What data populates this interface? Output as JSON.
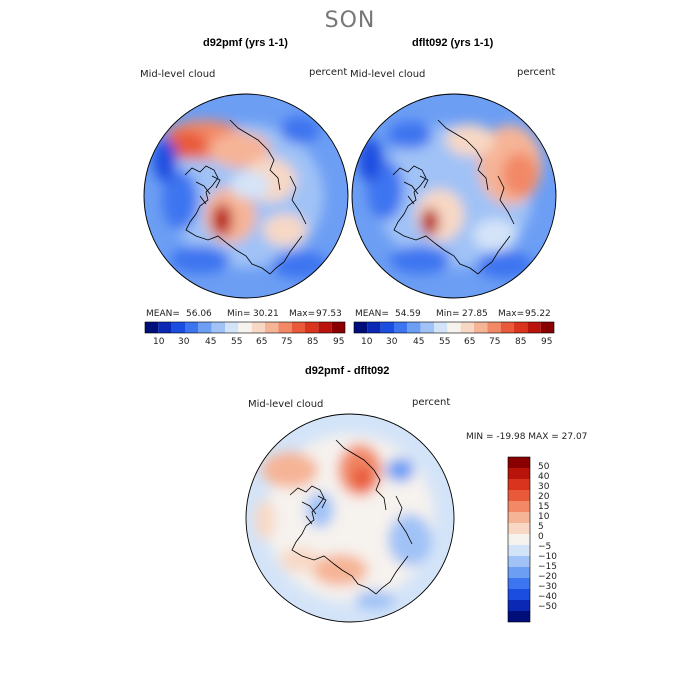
{
  "figure": {
    "season": "SON",
    "field_label": "Mid-level cloud",
    "units": "percent"
  },
  "panels": [
    {
      "title": "d92pmf (yrs 1-1)",
      "field": "Mid-level cloud",
      "units": "percent",
      "mean_label": "MEAN=",
      "mean": "56.06",
      "min_label": "Min=",
      "min": "30.21",
      "max_label": "Max=",
      "max": "97.53"
    },
    {
      "title": "dflt092 (yrs 1-1)",
      "field": "Mid-level cloud",
      "units": "percent",
      "mean_label": "MEAN=",
      "mean": "54.59",
      "min_label": "Min=",
      "min": "27.85",
      "max_label": "Max=",
      "max": "95.22"
    }
  ],
  "abs_colorbar": {
    "tick_labels": [
      "10",
      "30",
      "45",
      "55",
      "65",
      "75",
      "85",
      "95"
    ],
    "colors": [
      "#000e7a",
      "#0a28b4",
      "#1b4ee0",
      "#3d74f0",
      "#6c9ef4",
      "#a0c2f6",
      "#d4e4f8",
      "#f6f2ee",
      "#f8d8c4",
      "#f6b496",
      "#f28866",
      "#e85a3a",
      "#d8341e",
      "#b8140c",
      "#8a0000"
    ]
  },
  "diff_panel": {
    "title": "d92pmf - dflt092",
    "field": "Mid-level cloud",
    "units": "percent",
    "min_max_text": "MIN = -19.98 MAX =  27.07"
  },
  "diff_colorbar": {
    "labels": [
      "50",
      "40",
      "30",
      "20",
      "15",
      "10",
      "5",
      "0",
      "−5",
      "−10",
      "−15",
      "−20",
      "−30",
      "−40",
      "−50"
    ],
    "colors": [
      "#8a0000",
      "#b8140c",
      "#d8341e",
      "#e85a3a",
      "#f28866",
      "#f6b496",
      "#f8d8c4",
      "#f6f2ee",
      "#d4e4f8",
      "#a0c2f6",
      "#6c9ef4",
      "#3d74f0",
      "#1b4ee0",
      "#0a28b4",
      "#000e7a"
    ]
  }
}
